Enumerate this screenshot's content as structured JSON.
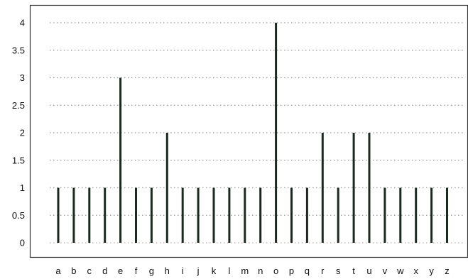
{
  "chart_data": {
    "type": "bar",
    "categories": [
      "a",
      "b",
      "c",
      "d",
      "e",
      "f",
      "g",
      "h",
      "i",
      "j",
      "k",
      "l",
      "m",
      "n",
      "o",
      "p",
      "q",
      "r",
      "s",
      "t",
      "u",
      "v",
      "w",
      "x",
      "y",
      "z"
    ],
    "values": [
      1,
      1,
      1,
      1,
      3,
      1,
      1,
      2,
      1,
      1,
      1,
      1,
      1,
      1,
      4,
      1,
      1,
      2,
      1,
      2,
      2,
      1,
      1,
      1,
      1,
      1
    ],
    "y_ticks": [
      "0",
      "0.5",
      "1",
      "1.5",
      "2",
      "2.5",
      "3",
      "3.5",
      "4"
    ],
    "ylim": [
      -0.25,
      4.3
    ],
    "grid": "horizontal dotted",
    "legend": "none",
    "bar_color": "#1b2a1f"
  }
}
